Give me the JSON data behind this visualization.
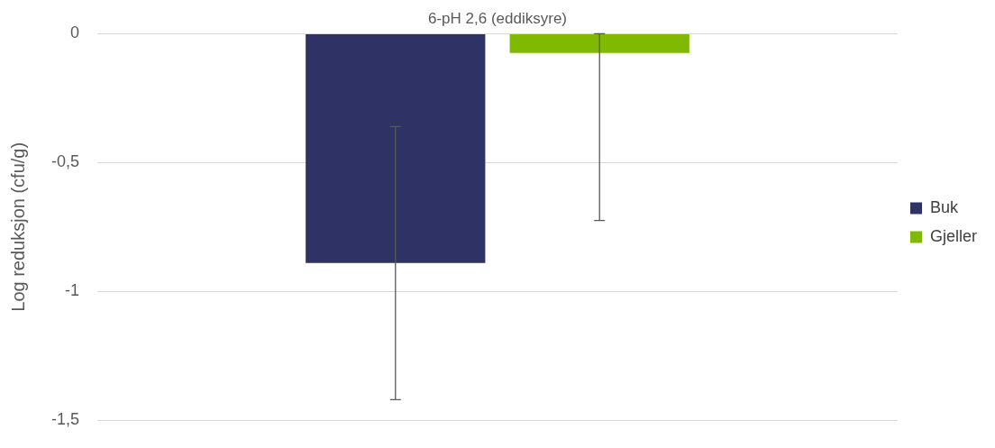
{
  "chart_data": {
    "type": "bar",
    "categories": [
      "6-pH 2,6 (eddiksyre)"
    ],
    "ylabel": "Log reduksjon (cfu/g)",
    "series": [
      {
        "name": "Buk",
        "color": "#2e3264",
        "values": [
          -0.89
        ],
        "errors": [
          [
            -1.42,
            -0.36
          ]
        ]
      },
      {
        "name": "Gjeller",
        "color": "#7fba00",
        "values": [
          -0.075
        ],
        "errors": [
          [
            -0.725,
            0
          ]
        ]
      }
    ],
    "ylim": [
      -1.5,
      0
    ],
    "yticks": [
      {
        "value": 0,
        "label": "0"
      },
      {
        "value": -0.5,
        "label": "-0,5"
      },
      {
        "value": -1,
        "label": "-1"
      },
      {
        "value": -1.5,
        "label": "-1,5"
      }
    ],
    "grid": "y",
    "legend": "right"
  }
}
